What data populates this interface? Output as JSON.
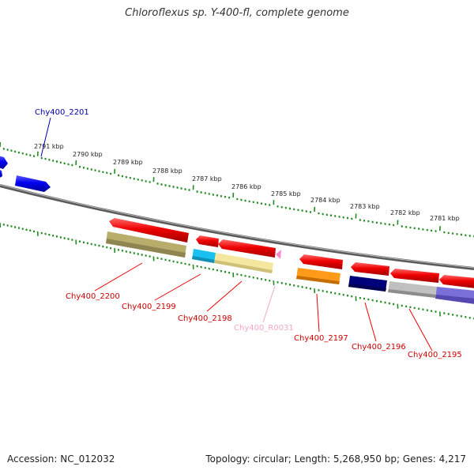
{
  "title": "Chloroflexus sp. Y-400-fl, complete genome",
  "footer": {
    "accession": "Accession: NC_012032",
    "stats": "Topology: circular; Length: 5,268,950 bp; Genes: 4,217"
  },
  "ruler_labels": [
    "2791 kbp",
    "2790 kbp",
    "2789 kbp",
    "2788 kbp",
    "2787 kbp",
    "2786 kbp",
    "2785 kbp",
    "2784 kbp",
    "2783 kbp",
    "2782 kbp",
    "2781 kbp"
  ],
  "colors": {
    "forward_gene": "#0000ee",
    "reverse_gene": "#ee0000",
    "rna": "#ff88cc",
    "backbone": "#777777",
    "ticks": "#228b22"
  },
  "genes": [
    {
      "label": "Chy400_2201",
      "color": "#0000aa"
    },
    {
      "label": "Chy400_2200",
      "color": "#cc0000"
    },
    {
      "label": "Chy400_2199",
      "color": "#cc0000"
    },
    {
      "label": "Chy400_2198",
      "color": "#cc0000"
    },
    {
      "label": "Chy400_R0031",
      "color": "#f4a6c8"
    },
    {
      "label": "Chy400_2197",
      "color": "#cc0000"
    },
    {
      "label": "Chy400_2196",
      "color": "#cc0000"
    },
    {
      "label": "Chy400_2195",
      "color": "#cc0000"
    }
  ]
}
